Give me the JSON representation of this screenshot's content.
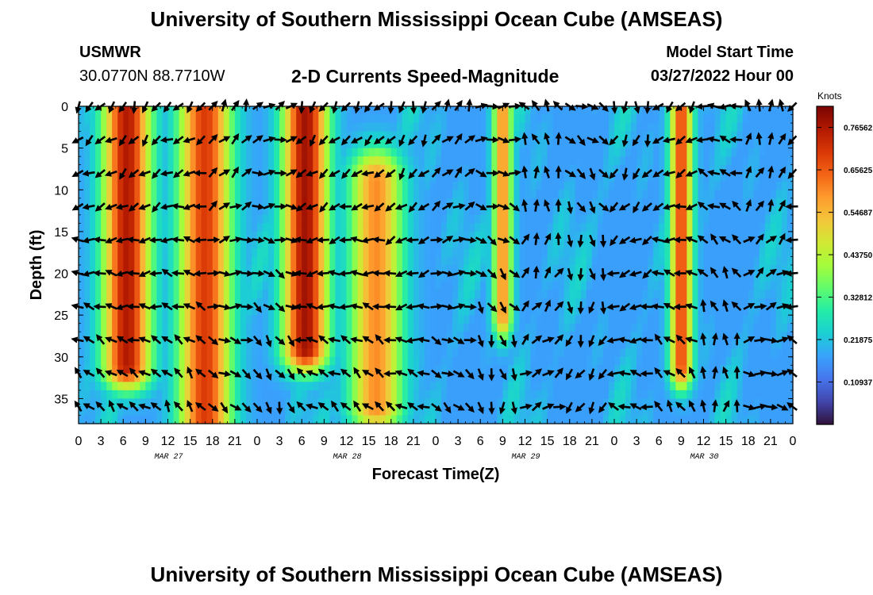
{
  "header": {
    "title": "University of Southern Mississippi Ocean Cube (AMSEAS)",
    "station": "USMWR",
    "coordinates": "30.0770N  88.7710W",
    "subtitle": "2-D Currents Speed-Magnitude",
    "model_start_label": "Model Start Time",
    "model_start_value": "03/27/2022 Hour 00"
  },
  "footer": {
    "title": "University of Southern Mississippi Ocean Cube (AMSEAS)"
  },
  "chart_data": {
    "type": "heatmap",
    "title": "2-D Currents Speed-Magnitude",
    "xlabel": "Forecast Time(Z)",
    "ylabel": "Depth (ft)",
    "xlim": [
      0,
      96
    ],
    "ylim": [
      0,
      38
    ],
    "x_ticks": [
      {
        "hour": 0,
        "label": "0"
      },
      {
        "hour": 3,
        "label": "3"
      },
      {
        "hour": 6,
        "label": "6"
      },
      {
        "hour": 9,
        "label": "9"
      },
      {
        "hour": 12,
        "label": "12"
      },
      {
        "hour": 15,
        "label": "15"
      },
      {
        "hour": 18,
        "label": "18"
      },
      {
        "hour": 21,
        "label": "21"
      },
      {
        "hour": 24,
        "label": "0"
      },
      {
        "hour": 27,
        "label": "3"
      },
      {
        "hour": 30,
        "label": "6"
      },
      {
        "hour": 33,
        "label": "9"
      },
      {
        "hour": 36,
        "label": "12"
      },
      {
        "hour": 39,
        "label": "15"
      },
      {
        "hour": 42,
        "label": "18"
      },
      {
        "hour": 45,
        "label": "21"
      },
      {
        "hour": 48,
        "label": "0"
      },
      {
        "hour": 51,
        "label": "3"
      },
      {
        "hour": 54,
        "label": "6"
      },
      {
        "hour": 57,
        "label": "9"
      },
      {
        "hour": 60,
        "label": "12"
      },
      {
        "hour": 63,
        "label": "15"
      },
      {
        "hour": 66,
        "label": "18"
      },
      {
        "hour": 69,
        "label": "21"
      },
      {
        "hour": 72,
        "label": "0"
      },
      {
        "hour": 75,
        "label": "3"
      },
      {
        "hour": 78,
        "label": "6"
      },
      {
        "hour": 81,
        "label": "9"
      },
      {
        "hour": 84,
        "label": "12"
      },
      {
        "hour": 87,
        "label": "15"
      },
      {
        "hour": 90,
        "label": "18"
      },
      {
        "hour": 93,
        "label": "21"
      },
      {
        "hour": 96,
        "label": "0"
      }
    ],
    "date_labels": [
      {
        "hour": 12,
        "label": "MAR 27"
      },
      {
        "hour": 36,
        "label": "MAR 28"
      },
      {
        "hour": 60,
        "label": "MAR 29"
      },
      {
        "hour": 84,
        "label": "MAR 30"
      }
    ],
    "y_ticks": [
      0,
      5,
      10,
      15,
      20,
      25,
      30,
      35
    ],
    "colorbar": {
      "unit_label": "Knots",
      "min": 0,
      "max": 0.82,
      "ticks": [
        {
          "value": 0.10937,
          "label": "0.10937"
        },
        {
          "value": 0.21875,
          "label": "0.21875"
        },
        {
          "value": 0.32812,
          "label": "0.32812"
        },
        {
          "value": 0.4375,
          "label": "0.43750"
        },
        {
          "value": 0.54687,
          "label": "0.54687"
        },
        {
          "value": 0.65625,
          "label": "0.65625"
        },
        {
          "value": 0.76562,
          "label": "0.76562"
        }
      ],
      "colors": [
        "#30123b",
        "#4145ab",
        "#4675ed",
        "#39a2fc",
        "#1bcfd4",
        "#24eca6",
        "#61fc6c",
        "#a4fc3b",
        "#d1e834",
        "#f3c63a",
        "#fe9b2d",
        "#f36315",
        "#d93806",
        "#b11901",
        "#7a0403"
      ]
    },
    "speed_features": [
      {
        "center_hour": 6.5,
        "half_width_hours": 3.2,
        "speed_knots": 0.76,
        "depth_top_ft": 0,
        "depth_bottom_ft": 31
      },
      {
        "center_hour": 17.0,
        "half_width_hours": 3.5,
        "speed_knots": 0.7,
        "depth_top_ft": 0,
        "depth_bottom_ft": 38
      },
      {
        "center_hour": 30.5,
        "half_width_hours": 3.0,
        "speed_knots": 0.78,
        "depth_top_ft": 0,
        "depth_bottom_ft": 29
      },
      {
        "center_hour": 40.0,
        "half_width_hours": 3.5,
        "speed_knots": 0.6,
        "depth_top_ft": 9,
        "depth_bottom_ft": 36
      },
      {
        "center_hour": 57.0,
        "half_width_hours": 1.3,
        "speed_knots": 0.6,
        "depth_top_ft": 0,
        "depth_bottom_ft": 25
      },
      {
        "center_hour": 81.0,
        "half_width_hours": 1.5,
        "speed_knots": 0.68,
        "depth_top_ft": 0,
        "depth_bottom_ft": 31
      }
    ],
    "vector_grid": {
      "hour_step": 1.5,
      "depths_ft": [
        0,
        4,
        8,
        12,
        16,
        20,
        24,
        28,
        32,
        36
      ],
      "mean_direction_deg": [
        130,
        120,
        140,
        300,
        330,
        120,
        130,
        110,
        300,
        350,
        240,
        30,
        100,
        135,
        180,
        270
      ]
    }
  }
}
